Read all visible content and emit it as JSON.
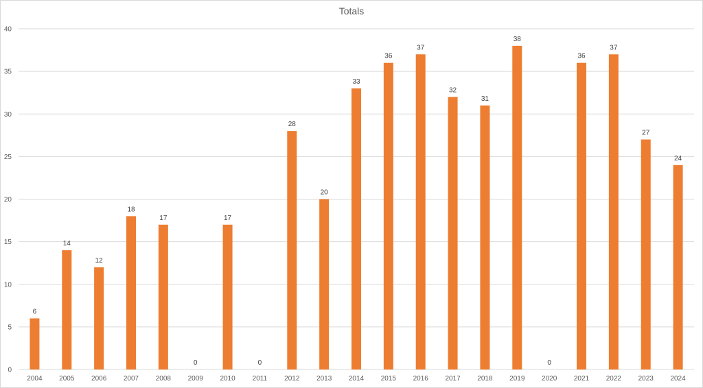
{
  "chart_data": {
    "type": "bar",
    "title": "Totals",
    "xlabel": "",
    "ylabel": "",
    "categories": [
      "2004",
      "2005",
      "2006",
      "2007",
      "2008",
      "2009",
      "2010",
      "2011",
      "2012",
      "2013",
      "2014",
      "2015",
      "2016",
      "2017",
      "2018",
      "2019",
      "2020",
      "2021",
      "2022",
      "2023",
      "2024"
    ],
    "values": [
      6,
      14,
      12,
      18,
      17,
      0,
      17,
      0,
      28,
      20,
      33,
      36,
      37,
      32,
      31,
      38,
      0,
      36,
      37,
      27,
      24
    ],
    "ylim": [
      0,
      40
    ],
    "yticks": [
      0,
      5,
      10,
      15,
      20,
      25,
      30,
      35,
      40
    ],
    "grid": true,
    "legend": "none",
    "data_labels": true,
    "bar_color": "#ED7D31",
    "gridline_color": "#d9d9d9"
  }
}
